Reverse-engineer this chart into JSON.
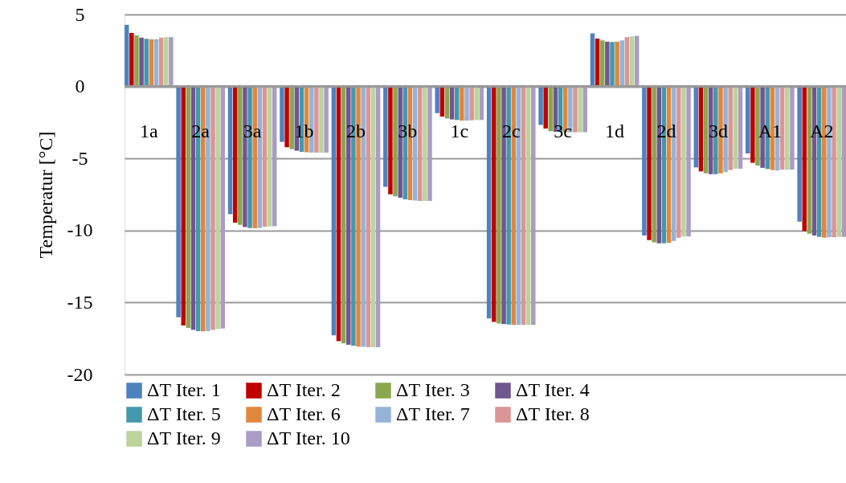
{
  "chart_data": {
    "type": "bar",
    "ylabel": "Temperatur [°C]",
    "ylim": [
      -20,
      5
    ],
    "yticks": [
      -20,
      -15,
      -10,
      -5,
      0,
      5
    ],
    "grid": "y",
    "legend": "bottom",
    "categories": [
      "1a",
      "2a",
      "3a",
      "1b",
      "2b",
      "3b",
      "1c",
      "2c",
      "3c",
      "1d",
      "2d",
      "3d",
      "A1",
      "A2"
    ],
    "series": [
      {
        "name": "ΔT Iter. 1",
        "color": "#4f81bd",
        "values": [
          4.28,
          -16.02,
          -8.87,
          -3.85,
          -17.28,
          -6.97,
          -1.85,
          -16.11,
          -2.67,
          3.69,
          -10.35,
          -5.62,
          -4.65,
          -9.39
        ]
      },
      {
        "name": "ΔT Iter. 2",
        "color": "#c00000",
        "values": [
          3.72,
          -16.6,
          -9.46,
          -4.22,
          -17.69,
          -7.49,
          -2.09,
          -16.35,
          -2.92,
          3.33,
          -10.67,
          -5.9,
          -5.3,
          -10.04
        ]
      },
      {
        "name": "ΔT Iter. 3",
        "color": "#8aa64f",
        "values": [
          3.54,
          -16.76,
          -9.6,
          -4.35,
          -17.84,
          -7.62,
          -2.22,
          -16.45,
          -3.11,
          3.2,
          -10.82,
          -6.03,
          -5.49,
          -10.22
        ]
      },
      {
        "name": "ΔT Iter. 4",
        "color": "#70568f",
        "values": [
          3.39,
          -16.9,
          -9.76,
          -4.46,
          -17.93,
          -7.73,
          -2.29,
          -16.5,
          -3.15,
          3.11,
          -10.89,
          -6.09,
          -5.65,
          -10.35
        ]
      },
      {
        "name": "ΔT Iter. 5",
        "color": "#4498ad",
        "values": [
          3.31,
          -16.98,
          -9.83,
          -4.54,
          -18.0,
          -7.83,
          -2.33,
          -16.52,
          -3.17,
          3.09,
          -10.89,
          -6.09,
          -5.73,
          -10.45
        ]
      },
      {
        "name": "ΔT Iter. 6",
        "color": "#e0873e",
        "values": [
          3.28,
          -17.0,
          -9.85,
          -4.57,
          -18.06,
          -7.89,
          -2.37,
          -16.55,
          -3.18,
          3.11,
          -10.86,
          -6.03,
          -5.8,
          -10.5
        ]
      },
      {
        "name": "ΔT Iter. 7",
        "color": "#95b3d7",
        "values": [
          3.28,
          -16.98,
          -9.83,
          -4.59,
          -18.08,
          -7.92,
          -2.37,
          -16.55,
          -3.18,
          3.2,
          -10.72,
          -5.95,
          -5.84,
          -10.47
        ]
      },
      {
        "name": "ΔT Iter. 8",
        "color": "#d99694",
        "values": [
          3.39,
          -16.9,
          -9.75,
          -4.59,
          -18.1,
          -7.94,
          -2.35,
          -16.55,
          -3.18,
          3.43,
          -10.5,
          -5.8,
          -5.77,
          -10.47
        ]
      },
      {
        "name": "ΔT Iter. 9",
        "color": "#bcd39b",
        "values": [
          3.43,
          -16.85,
          -9.72,
          -4.59,
          -18.1,
          -7.94,
          -2.33,
          -16.55,
          -3.18,
          3.48,
          -10.41,
          -5.71,
          -5.77,
          -10.45
        ]
      },
      {
        "name": "ΔT Iter. 10",
        "color": "#aa9cc4",
        "values": [
          3.43,
          -16.8,
          -9.7,
          -4.59,
          -18.1,
          -7.94,
          -2.33,
          -16.55,
          -3.18,
          3.52,
          -10.41,
          -5.71,
          -5.77,
          -10.45
        ]
      }
    ]
  }
}
